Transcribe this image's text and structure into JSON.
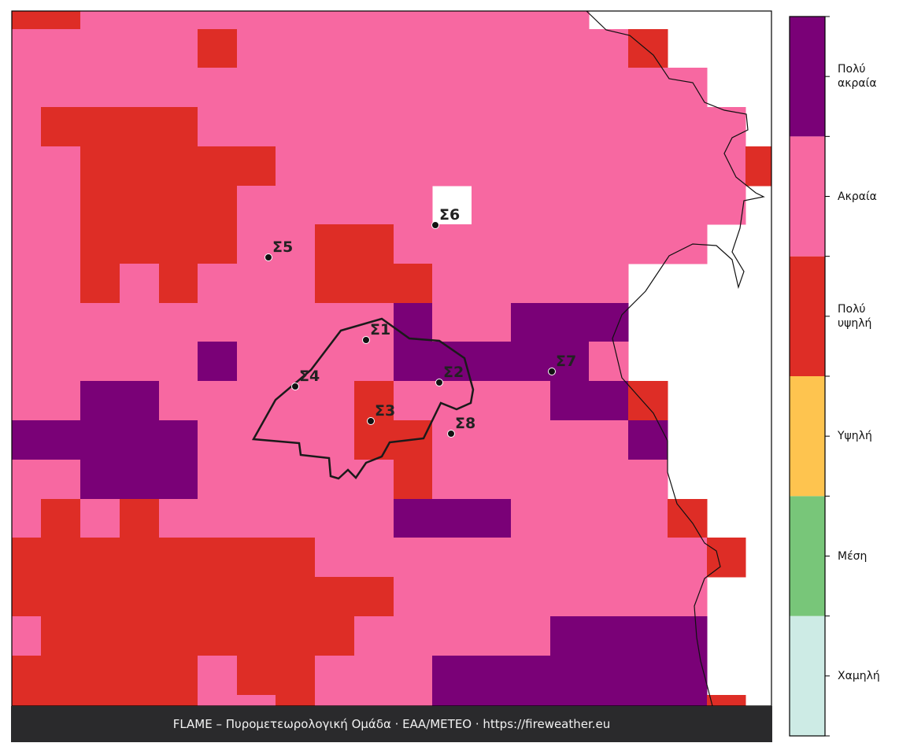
{
  "map": {
    "footer": "FLAME – Πυρομετεωρολογική Ομάδα · ΕΑΑ/ΜΕΤΕΟ · https://fireweather.eu",
    "classes": [
      {
        "label": "Χαμηλή",
        "color": "#cdebe5"
      },
      {
        "label": "Μέση",
        "color": "#78c679"
      },
      {
        "label": "Υψηλή",
        "color": "#fec44f"
      },
      {
        "label": "Πολύ\nυψηλή",
        "color": "#de2d26"
      },
      {
        "label": "Ακραία",
        "color": "#f768a1"
      },
      {
        "label": "Πολύ\nακραία",
        "color": "#7a0177"
      }
    ],
    "stations": [
      "Σ1",
      "Σ2",
      "Σ3",
      "Σ4",
      "Σ5",
      "Σ6",
      "Σ7",
      "Σ8"
    ],
    "grid": [
      [
        3,
        3,
        4,
        4,
        4,
        4,
        4,
        4,
        4,
        4,
        4,
        4,
        4,
        4,
        4,
        null,
        null,
        null,
        null,
        null
      ],
      [
        4,
        4,
        4,
        4,
        4,
        3,
        4,
        4,
        4,
        4,
        4,
        4,
        4,
        4,
        4,
        4,
        3,
        null,
        null,
        null
      ],
      [
        4,
        4,
        4,
        4,
        4,
        4,
        4,
        4,
        4,
        4,
        4,
        4,
        4,
        4,
        4,
        4,
        4,
        4,
        null,
        null
      ],
      [
        4,
        3,
        3,
        3,
        3,
        4,
        4,
        4,
        4,
        4,
        4,
        4,
        4,
        4,
        4,
        4,
        4,
        4,
        4,
        null
      ],
      [
        4,
        4,
        3,
        3,
        3,
        3,
        3,
        4,
        4,
        4,
        4,
        4,
        4,
        4,
        4,
        4,
        4,
        4,
        4,
        3
      ],
      [
        4,
        4,
        3,
        3,
        3,
        3,
        4,
        4,
        4,
        4,
        4,
        null,
        4,
        4,
        4,
        4,
        4,
        4,
        4,
        null
      ],
      [
        4,
        4,
        3,
        3,
        3,
        3,
        4,
        4,
        3,
        3,
        4,
        4,
        4,
        4,
        4,
        4,
        4,
        4,
        null,
        null
      ],
      [
        4,
        4,
        3,
        4,
        3,
        4,
        4,
        4,
        3,
        3,
        3,
        4,
        4,
        4,
        4,
        4,
        null,
        null,
        null,
        null
      ],
      [
        4,
        4,
        4,
        4,
        4,
        4,
        4,
        4,
        4,
        4,
        5,
        4,
        4,
        5,
        5,
        5,
        null,
        null,
        null,
        null
      ],
      [
        4,
        4,
        4,
        4,
        4,
        5,
        4,
        4,
        4,
        4,
        5,
        5,
        5,
        5,
        5,
        4,
        null,
        null,
        null,
        null
      ],
      [
        4,
        4,
        5,
        5,
        4,
        4,
        4,
        4,
        4,
        3,
        4,
        4,
        4,
        4,
        5,
        5,
        3,
        null,
        null,
        null
      ],
      [
        5,
        5,
        5,
        5,
        5,
        4,
        4,
        4,
        4,
        3,
        3,
        4,
        4,
        4,
        4,
        4,
        5,
        null,
        null,
        null
      ],
      [
        4,
        4,
        5,
        5,
        5,
        4,
        4,
        4,
        4,
        4,
        3,
        4,
        4,
        4,
        4,
        4,
        4,
        null,
        null,
        null
      ],
      [
        4,
        3,
        4,
        3,
        4,
        4,
        4,
        4,
        4,
        4,
        5,
        5,
        5,
        4,
        4,
        4,
        4,
        3,
        null,
        null
      ],
      [
        3,
        3,
        3,
        3,
        3,
        3,
        3,
        3,
        4,
        4,
        4,
        4,
        4,
        4,
        4,
        4,
        4,
        4,
        3,
        null
      ],
      [
        3,
        3,
        3,
        3,
        3,
        3,
        3,
        3,
        3,
        3,
        4,
        4,
        4,
        4,
        4,
        4,
        4,
        4,
        null,
        null
      ],
      [
        4,
        3,
        3,
        3,
        3,
        3,
        3,
        3,
        3,
        4,
        4,
        4,
        4,
        4,
        5,
        5,
        5,
        5,
        null,
        null
      ],
      [
        3,
        3,
        3,
        3,
        3,
        4,
        3,
        3,
        4,
        4,
        4,
        5,
        5,
        5,
        5,
        5,
        5,
        5,
        null,
        null
      ],
      [
        3,
        3,
        3,
        3,
        3,
        4,
        4,
        3,
        4,
        4,
        4,
        5,
        5,
        5,
        5,
        5,
        5,
        5,
        3,
        null
      ]
    ]
  }
}
